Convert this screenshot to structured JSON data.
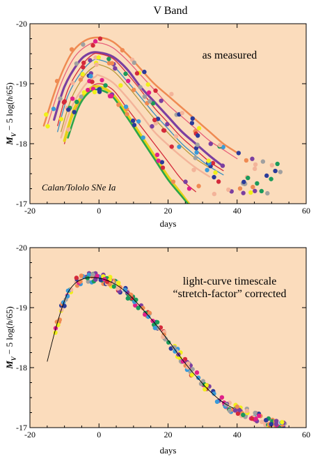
{
  "figure": {
    "title": "V Band",
    "background_color": "#fbdcbc",
    "line_palette": [
      "#ef8a52",
      "#e8607a",
      "#d42a3a",
      "#7b3fa0",
      "#3a8fc0",
      "#2ba64a",
      "#e6d21a",
      "#b89a3a",
      "#f3b49a",
      "#a0c0d8",
      "#6a6a6a"
    ],
    "point_palette": [
      "#ef8a52",
      "#d42a3a",
      "#e0208a",
      "#7b3fa0",
      "#2a3a9a",
      "#3a9ad8",
      "#1a9a5a",
      "#f0f01a",
      "#a0a0a0",
      "#f3b49a"
    ]
  },
  "chart_data": [
    {
      "type": "line",
      "annotation": "as measured",
      "annotation_italic": "Calan/Tololo SNe Ia",
      "xlabel": "days",
      "ylabel": "M_V − 5 log(h/65)",
      "ylabel_parts": {
        "m": "M",
        "sub": "V",
        "rest": " − 5 log(",
        "h": "h",
        "tail": "/65)"
      },
      "xlim": [
        -20,
        60
      ],
      "ylim": [
        -17,
        -20
      ],
      "y_inverted": true,
      "xticks": [
        -20,
        0,
        20,
        40,
        60
      ],
      "yticks": [
        -20,
        -19,
        -18,
        -17
      ],
      "xtick_labels": [
        "-20",
        "0",
        "20",
        "40",
        "60"
      ],
      "ytick_labels": [
        "-20",
        "-19",
        "-18",
        "-17"
      ],
      "series": [
        {
          "color": "#ef8a52",
          "width": 2.5,
          "x": [
            -16,
            -12,
            -8,
            -4,
            0,
            4,
            8,
            12,
            16,
            20,
            24,
            28,
            32,
            36,
            40
          ],
          "y": [
            -18.3,
            -19.0,
            -19.5,
            -19.72,
            -19.77,
            -19.7,
            -19.5,
            -19.25,
            -19.0,
            -18.8,
            -18.6,
            -18.4,
            -18.2,
            -18.0,
            -17.85
          ]
        },
        {
          "color": "#e8607a",
          "width": 1.3,
          "x": [
            -15,
            -11,
            -7,
            -3,
            0,
            4,
            8,
            12,
            16,
            20,
            24,
            28,
            32,
            36,
            40
          ],
          "y": [
            -18.3,
            -19.0,
            -19.45,
            -19.65,
            -19.68,
            -19.6,
            -19.4,
            -19.15,
            -18.9,
            -18.65,
            -18.45,
            -18.25,
            -18.05,
            -17.9,
            -17.75
          ]
        },
        {
          "color": "#7b3fa0",
          "width": 3.2,
          "x": [
            -13,
            -10,
            -6,
            -3,
            0,
            4,
            8,
            12,
            16,
            20,
            24,
            28,
            32,
            36
          ],
          "y": [
            -18.4,
            -18.95,
            -19.35,
            -19.5,
            -19.52,
            -19.45,
            -19.25,
            -18.95,
            -18.7,
            -18.45,
            -18.2,
            -18.0,
            -17.8,
            -17.62
          ]
        },
        {
          "color": "#d42a3a",
          "width": 1.3,
          "x": [
            -12,
            -9,
            -5,
            -2,
            0,
            4,
            8,
            12,
            16,
            20,
            24,
            28,
            32,
            36
          ],
          "y": [
            -18.3,
            -18.9,
            -19.3,
            -19.48,
            -19.5,
            -19.42,
            -19.18,
            -18.9,
            -18.6,
            -18.35,
            -18.1,
            -17.9,
            -17.7,
            -17.55
          ]
        },
        {
          "color": "#3a8fc0",
          "width": 1.3,
          "x": [
            -12,
            -9,
            -5,
            -2,
            0,
            4,
            8,
            12,
            16,
            20,
            24,
            28,
            32,
            36
          ],
          "y": [
            -18.2,
            -18.8,
            -19.2,
            -19.38,
            -19.4,
            -19.3,
            -19.05,
            -18.78,
            -18.5,
            -18.25,
            -18.0,
            -17.8,
            -17.62,
            -17.48
          ]
        },
        {
          "color": "#b89a3a",
          "width": 1.3,
          "x": [
            -11,
            -8,
            -4,
            -1,
            0,
            4,
            8,
            12,
            16,
            20,
            24,
            28,
            32
          ],
          "y": [
            -18.2,
            -18.75,
            -19.15,
            -19.3,
            -19.32,
            -19.22,
            -18.98,
            -18.7,
            -18.42,
            -18.18,
            -17.95,
            -17.75,
            -17.6
          ]
        },
        {
          "color": "#f3b49a",
          "width": 2.4,
          "x": [
            -11,
            -8,
            -4,
            -1,
            0,
            4,
            8,
            12,
            16,
            20,
            24,
            28,
            32
          ],
          "y": [
            -18.1,
            -18.6,
            -18.98,
            -19.12,
            -19.14,
            -19.02,
            -18.78,
            -18.5,
            -18.2,
            -17.98,
            -17.78,
            -17.6,
            -17.45
          ]
        },
        {
          "color": "#d42a3a",
          "width": 1.3,
          "x": [
            -10,
            -7,
            -3,
            0,
            4,
            8,
            12,
            16,
            20,
            24,
            28
          ],
          "y": [
            -18.0,
            -18.55,
            -18.9,
            -19.0,
            -18.9,
            -18.6,
            -18.3,
            -18.0,
            -17.7,
            -17.4,
            -17.2
          ]
        },
        {
          "color": "#e6d21a",
          "width": 4.0,
          "x": [
            -10,
            -7,
            -3,
            0,
            4,
            8,
            12,
            16,
            20,
            24,
            26
          ],
          "y": [
            -18.05,
            -18.6,
            -18.9,
            -18.95,
            -18.82,
            -18.5,
            -18.15,
            -17.8,
            -17.45,
            -17.15,
            -17.0
          ]
        },
        {
          "color": "#2ba64a",
          "width": 2.6,
          "x": [
            -9,
            -6,
            -3,
            0,
            4,
            8,
            12,
            16,
            20,
            24,
            26
          ],
          "y": [
            -18.1,
            -18.6,
            -18.85,
            -18.9,
            -18.78,
            -18.45,
            -18.1,
            -17.75,
            -17.4,
            -17.12,
            -16.98
          ]
        }
      ],
      "points_seed": 7,
      "points_count": 170
    },
    {
      "type": "scatter",
      "annotation_line1": "light-curve timescale",
      "annotation_line2": "“stretch-factor” corrected",
      "xlabel": "days",
      "ylabel": "M_V − 5 log(h/65)",
      "ylabel_parts": {
        "m": "M",
        "sub": "V",
        "rest": " − 5 log(",
        "h": "h",
        "tail": "/65)"
      },
      "xlim": [
        -20,
        60
      ],
      "ylim": [
        -17,
        -20
      ],
      "y_inverted": true,
      "xticks": [
        -20,
        0,
        20,
        40,
        60
      ],
      "yticks": [
        -20,
        -19,
        -18,
        -17
      ],
      "xtick_labels": [
        "-20",
        "0",
        "20",
        "40",
        "60"
      ],
      "ytick_labels": [
        "-20",
        "-19",
        "-18",
        "-17"
      ],
      "template_line": {
        "color": "#000000",
        "x": [
          -15,
          -13,
          -11,
          -9,
          -7,
          -5,
          -3,
          -1,
          1,
          3,
          5,
          7,
          9,
          11,
          13,
          15,
          17,
          19,
          21,
          23,
          25,
          27,
          29,
          31,
          33,
          35,
          37,
          39
        ],
        "y": [
          -18.1,
          -18.55,
          -18.95,
          -19.25,
          -19.4,
          -19.47,
          -19.5,
          -19.5,
          -19.48,
          -19.44,
          -19.38,
          -19.3,
          -19.2,
          -19.08,
          -18.95,
          -18.82,
          -18.68,
          -18.53,
          -18.38,
          -18.22,
          -18.07,
          -17.93,
          -17.8,
          -17.67,
          -17.56,
          -17.46,
          -17.38,
          -17.32
        ]
      },
      "points_seed": 13,
      "points_count": 260
    }
  ]
}
